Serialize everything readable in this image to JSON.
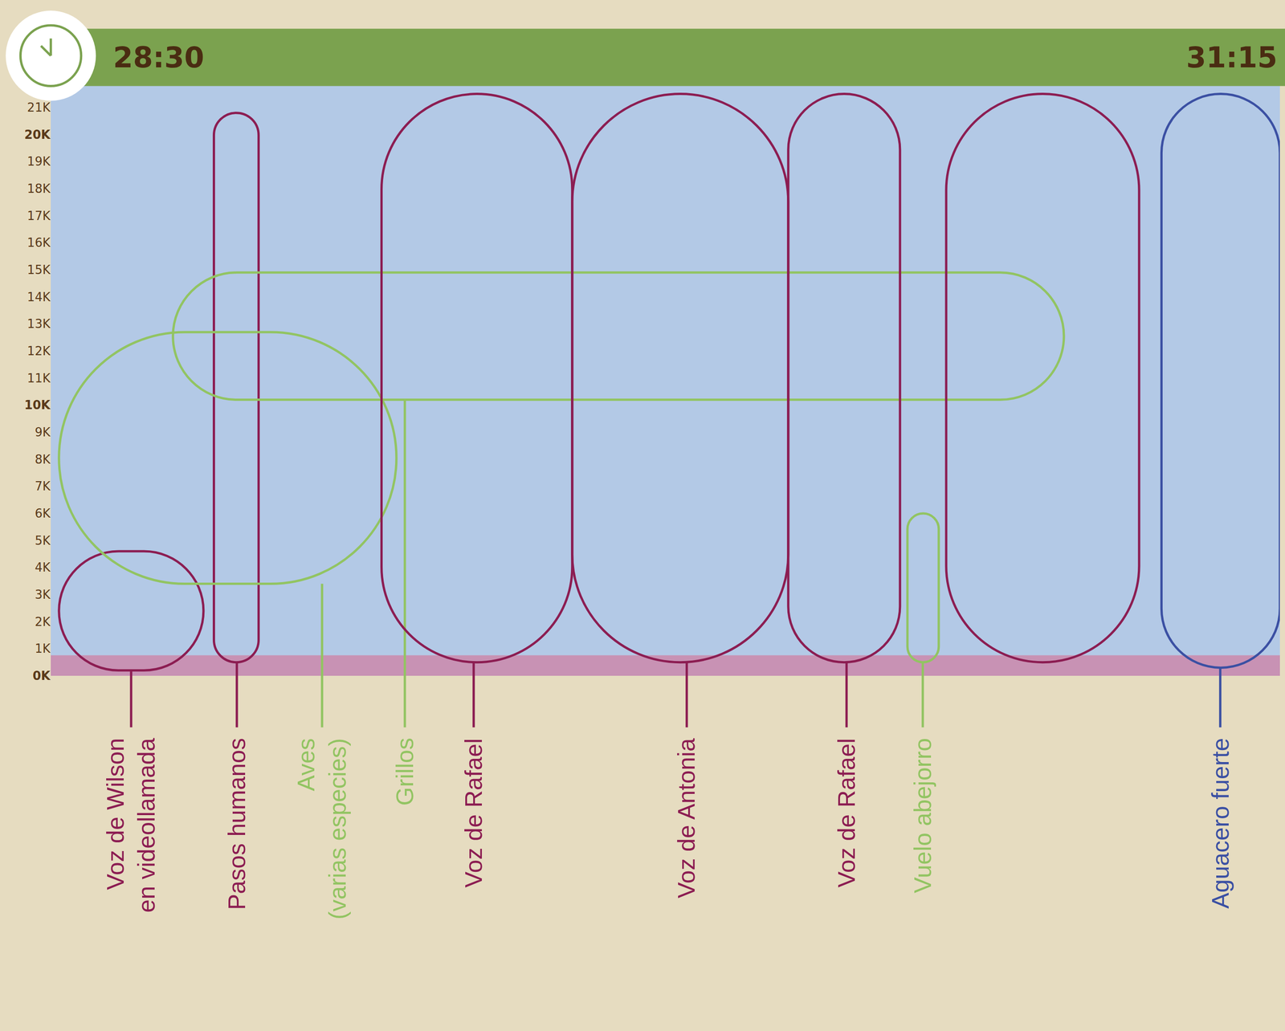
{
  "chart_data": {
    "type": "annotated_spectrogram",
    "grid": false,
    "xlim": [
      1710,
      1875
    ],
    "xticks": [
      {
        "value": 1710,
        "label": "28:30"
      },
      {
        "value": 1875,
        "label": "31:15"
      }
    ],
    "ylim": [
      0,
      21800
    ],
    "yticks": [
      {
        "value": 0,
        "label": "0K"
      },
      {
        "value": 1000,
        "label": "1K"
      },
      {
        "value": 2000,
        "label": "2K"
      },
      {
        "value": 3000,
        "label": "3K"
      },
      {
        "value": 4000,
        "label": "4K"
      },
      {
        "value": 5000,
        "label": "5K"
      },
      {
        "value": 6000,
        "label": "6K"
      },
      {
        "value": 7000,
        "label": "7K"
      },
      {
        "value": 8000,
        "label": "8K"
      },
      {
        "value": 9000,
        "label": "9K"
      },
      {
        "value": 10000,
        "label": "10K"
      },
      {
        "value": 11000,
        "label": "11K"
      },
      {
        "value": 12000,
        "label": "12K"
      },
      {
        "value": 13000,
        "label": "13K"
      },
      {
        "value": 14000,
        "label": "14K"
      },
      {
        "value": 15000,
        "label": "15K"
      },
      {
        "value": 16000,
        "label": "16K"
      },
      {
        "value": 17000,
        "label": "17K"
      },
      {
        "value": 18000,
        "label": "18K"
      },
      {
        "value": 19000,
        "label": "19K"
      },
      {
        "value": 20000,
        "label": "20K"
      },
      {
        "value": 21000,
        "label": "21K"
      }
    ],
    "regions": [
      {
        "label": "Voz de Wilson en videollamada",
        "color": "#8c1d52",
        "time": [
          1711.1,
          1730.5
        ],
        "freq": [
          200,
          4600
        ]
      },
      {
        "label": "Pasos humanos",
        "color": "#8c1d52",
        "time": [
          1731.9,
          1737.9
        ],
        "freq": [
          500,
          20800
        ]
      },
      {
        "label": "Aves (varias especies)",
        "color": "#92c462",
        "time": [
          1711.1,
          1756.4
        ],
        "freq": [
          3400,
          12700
        ]
      },
      {
        "label": "Grillos",
        "color": "#92c462",
        "time": [
          1726.4,
          1846
        ],
        "freq": [
          10200,
          14900
        ]
      },
      {
        "label": "Voz de Rafael",
        "color": "#8c1d52",
        "time": [
          1754.4,
          1780
        ],
        "freq": [
          500,
          21500
        ]
      },
      {
        "label": "Voz de Antonia",
        "color": "#8c1d52",
        "time": [
          1780,
          1809
        ],
        "freq": [
          500,
          21500
        ]
      },
      {
        "label": "Voz de Rafael",
        "color": "#8c1d52",
        "time": [
          1809,
          1824
        ],
        "freq": [
          500,
          21500
        ]
      },
      {
        "label": null,
        "color": "#8c1d52",
        "time": [
          1830.2,
          1856.1
        ],
        "freq": [
          500,
          21500
        ]
      },
      {
        "label": "Vuelo abejorro",
        "color": "#92c462",
        "time": [
          1825,
          1829.2
        ],
        "freq": [
          500,
          6000
        ]
      },
      {
        "label": "Aguacero fuerte",
        "color": "#3b50a3",
        "time": [
          1859.1,
          1875
        ],
        "freq": [
          300,
          21500
        ]
      }
    ]
  }
}
